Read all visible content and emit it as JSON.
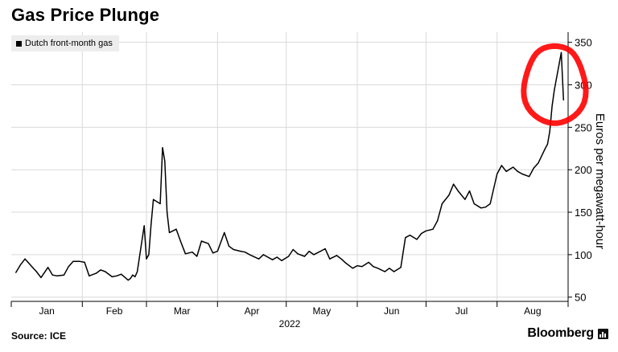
{
  "header": {
    "title": "Gas Price Plunge"
  },
  "footer": {
    "source": "Source: ICE",
    "brand": "Bloomberg"
  },
  "colors": {
    "line": "#000000",
    "grid": "#d9d9d9",
    "legend_bg": "#ededed",
    "annotation": "#ff0000"
  },
  "annotation": {
    "type": "hand-drawn circle",
    "target": "late-August peak"
  },
  "chart_data": {
    "type": "line",
    "title": "Gas Price Plunge",
    "ylabel": "Euros per megawatt-hour",
    "xlabel": "2022",
    "ylim": [
      45,
      362
    ],
    "y_ticks": [
      50,
      100,
      150,
      200,
      250,
      300,
      350
    ],
    "x_tick_labels": [
      "Jan",
      "Feb",
      "Mar",
      "Apr",
      "May",
      "Jun",
      "Jul",
      "Aug"
    ],
    "grid": true,
    "legend_position": "top-left",
    "series": [
      {
        "name": "Dutch front-month gas",
        "x": [
          "2022-01-03",
          "2022-01-05",
          "2022-01-07",
          "2022-01-10",
          "2022-01-12",
          "2022-01-14",
          "2022-01-17",
          "2022-01-19",
          "2022-01-21",
          "2022-01-24",
          "2022-01-26",
          "2022-01-28",
          "2022-01-31",
          "2022-02-02",
          "2022-02-04",
          "2022-02-07",
          "2022-02-09",
          "2022-02-11",
          "2022-02-14",
          "2022-02-16",
          "2022-02-18",
          "2022-02-21",
          "2022-02-22",
          "2022-02-23",
          "2022-02-24",
          "2022-02-25",
          "2022-02-28",
          "2022-03-01",
          "2022-03-02",
          "2022-03-03",
          "2022-03-04",
          "2022-03-07",
          "2022-03-08",
          "2022-03-09",
          "2022-03-10",
          "2022-03-11",
          "2022-03-14",
          "2022-03-16",
          "2022-03-18",
          "2022-03-21",
          "2022-03-23",
          "2022-03-25",
          "2022-03-28",
          "2022-03-30",
          "2022-04-01",
          "2022-04-04",
          "2022-04-06",
          "2022-04-08",
          "2022-04-11",
          "2022-04-13",
          "2022-04-15",
          "2022-04-19",
          "2022-04-21",
          "2022-04-25",
          "2022-04-27",
          "2022-04-29",
          "2022-05-02",
          "2022-05-04",
          "2022-05-06",
          "2022-05-09",
          "2022-05-11",
          "2022-05-13",
          "2022-05-16",
          "2022-05-18",
          "2022-05-20",
          "2022-05-23",
          "2022-05-25",
          "2022-05-27",
          "2022-05-30",
          "2022-06-01",
          "2022-06-03",
          "2022-06-06",
          "2022-06-08",
          "2022-06-10",
          "2022-06-13",
          "2022-06-15",
          "2022-06-17",
          "2022-06-20",
          "2022-06-22",
          "2022-06-24",
          "2022-06-27",
          "2022-06-29",
          "2022-07-01",
          "2022-07-04",
          "2022-07-06",
          "2022-07-08",
          "2022-07-11",
          "2022-07-13",
          "2022-07-15",
          "2022-07-18",
          "2022-07-20",
          "2022-07-22",
          "2022-07-25",
          "2022-07-27",
          "2022-07-29",
          "2022-08-01",
          "2022-08-03",
          "2022-08-05",
          "2022-08-08",
          "2022-08-10",
          "2022-08-12",
          "2022-08-15",
          "2022-08-17",
          "2022-08-19",
          "2022-08-22",
          "2022-08-23",
          "2022-08-24",
          "2022-08-25",
          "2022-08-26",
          "2022-08-29",
          "2022-08-30"
        ],
        "values": [
          79,
          88,
          95,
          86,
          80,
          73,
          85,
          76,
          75,
          76,
          86,
          92,
          92,
          91,
          75,
          78,
          82,
          80,
          74,
          75,
          77,
          70,
          72,
          76,
          74,
          80,
          134,
          95,
          100,
          135,
          165,
          160,
          226,
          210,
          150,
          126,
          130,
          115,
          101,
          103,
          98,
          116,
          113,
          102,
          104,
          126,
          110,
          106,
          104,
          103,
          100,
          95,
          100,
          94,
          97,
          93,
          98,
          106,
          101,
          98,
          104,
          100,
          104,
          107,
          95,
          99,
          95,
          90,
          84,
          87,
          86,
          91,
          86,
          84,
          80,
          84,
          80,
          85,
          120,
          123,
          118,
          125,
          128,
          130,
          140,
          160,
          170,
          183,
          175,
          165,
          175,
          160,
          155,
          156,
          160,
          195,
          205,
          198,
          203,
          198,
          195,
          192,
          202,
          208,
          225,
          230,
          245,
          275,
          294,
          338,
          282
        ]
      }
    ]
  }
}
